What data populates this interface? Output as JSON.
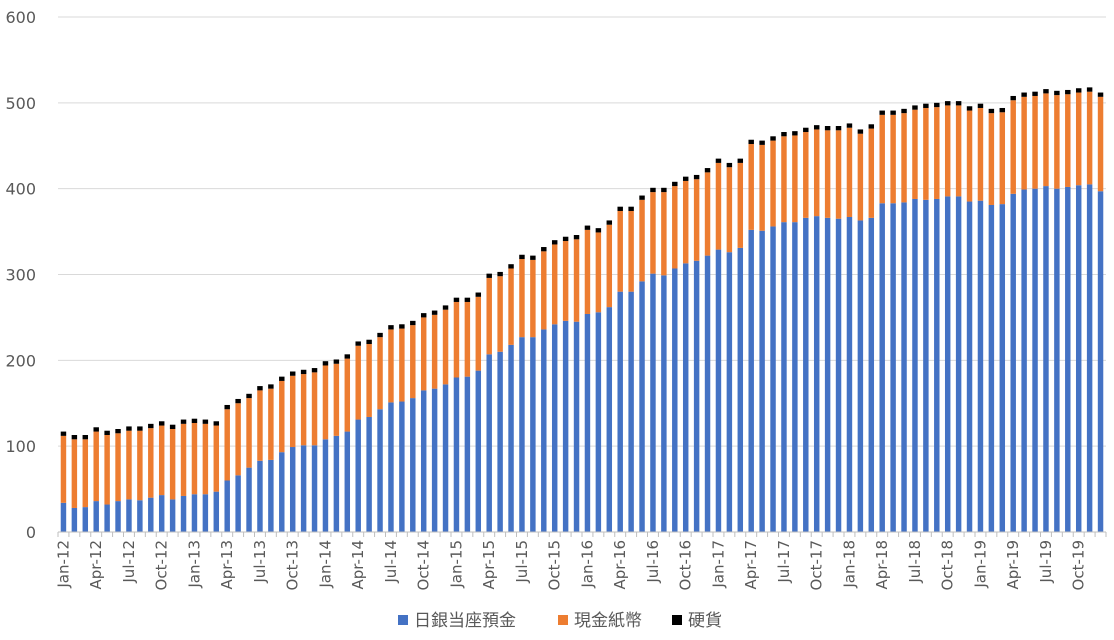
{
  "chart_data": {
    "type": "bar",
    "stacked": true,
    "ylim": [
      0,
      600
    ],
    "yticks": [
      0,
      100,
      200,
      300,
      400,
      500,
      600
    ],
    "grid": true,
    "legend_position": "bottom",
    "tick_labels": [
      "Jan-12",
      "Apr-12",
      "Jul-12",
      "Oct-12",
      "Jan-13",
      "Apr-13",
      "Jul-13",
      "Oct-13",
      "Jan-14",
      "Apr-14",
      "Jul-14",
      "Oct-14",
      "Jan-15",
      "Apr-15",
      "Jul-15",
      "Oct-15",
      "Jan-16",
      "Apr-16",
      "Jul-16",
      "Oct-16",
      "Jan-17",
      "Apr-17",
      "Jul-17",
      "Oct-17",
      "Jan-18",
      "Apr-18",
      "Jul-18",
      "Oct-18",
      "Jan-19",
      "Apr-19",
      "Jul-19",
      "Oct-19"
    ],
    "categories": [
      "Jan-12",
      "Feb-12",
      "Mar-12",
      "Apr-12",
      "May-12",
      "Jun-12",
      "Jul-12",
      "Aug-12",
      "Sep-12",
      "Oct-12",
      "Nov-12",
      "Dec-12",
      "Jan-13",
      "Feb-13",
      "Mar-13",
      "Apr-13",
      "May-13",
      "Jun-13",
      "Jul-13",
      "Aug-13",
      "Sep-13",
      "Oct-13",
      "Nov-13",
      "Dec-13",
      "Jan-14",
      "Feb-14",
      "Mar-14",
      "Apr-14",
      "May-14",
      "Jun-14",
      "Jul-14",
      "Aug-14",
      "Sep-14",
      "Oct-14",
      "Nov-14",
      "Dec-14",
      "Jan-15",
      "Feb-15",
      "Mar-15",
      "Apr-15",
      "May-15",
      "Jun-15",
      "Jul-15",
      "Aug-15",
      "Sep-15",
      "Oct-15",
      "Nov-15",
      "Dec-15",
      "Jan-16",
      "Feb-16",
      "Mar-16",
      "Apr-16",
      "May-16",
      "Jun-16",
      "Jul-16",
      "Aug-16",
      "Sep-16",
      "Oct-16",
      "Nov-16",
      "Dec-16",
      "Jan-17",
      "Feb-17",
      "Mar-17",
      "Apr-17",
      "May-17",
      "Jun-17",
      "Jul-17",
      "Aug-17",
      "Sep-17",
      "Oct-17",
      "Nov-17",
      "Dec-17",
      "Jan-18",
      "Feb-18",
      "Mar-18",
      "Apr-18",
      "May-18",
      "Jun-18",
      "Jul-18",
      "Aug-18",
      "Sep-18",
      "Oct-18",
      "Nov-18",
      "Dec-18",
      "Jan-19",
      "Feb-19",
      "Mar-19",
      "Apr-19",
      "May-19",
      "Jun-19",
      "Jul-19",
      "Aug-19",
      "Sep-19",
      "Oct-19",
      "Nov-19",
      "Dec-19"
    ],
    "series": [
      {
        "name": "日銀当座預金",
        "color": "#4472c4",
        "values": [
          34,
          28,
          29,
          36,
          32,
          36,
          38,
          37,
          40,
          43,
          38,
          42,
          44,
          44,
          47,
          60,
          66,
          75,
          83,
          84,
          93,
          99,
          101,
          101,
          108,
          112,
          117,
          131,
          134,
          143,
          151,
          152,
          156,
          165,
          167,
          172,
          180,
          181,
          188,
          207,
          210,
          218,
          227,
          227,
          236,
          242,
          246,
          245,
          254,
          256,
          262,
          280,
          280,
          292,
          301,
          299,
          307,
          313,
          316,
          322,
          329,
          326,
          331,
          352,
          351,
          356,
          361,
          361,
          366,
          368,
          366,
          365,
          367,
          363,
          366,
          383,
          383,
          384,
          388,
          387,
          388,
          391,
          391,
          385,
          386,
          381,
          382,
          394,
          399,
          400,
          403,
          400,
          402,
          404,
          405,
          397
        ]
      },
      {
        "name": "現金紙幣",
        "color": "#ed7d31",
        "values": [
          78,
          80,
          79,
          81,
          81,
          79,
          80,
          81,
          81,
          81,
          82,
          84,
          83,
          82,
          77,
          83,
          84,
          81,
          82,
          83,
          83,
          83,
          83,
          85,
          86,
          84,
          85,
          86,
          85,
          84,
          85,
          85,
          85,
          85,
          86,
          87,
          88,
          87,
          86,
          89,
          88,
          89,
          91,
          90,
          91,
          93,
          93,
          96,
          98,
          93,
          96,
          94,
          94,
          95,
          95,
          97,
          96,
          96,
          95,
          97,
          101,
          99,
          99,
          100,
          100,
          100,
          100,
          101,
          100,
          101,
          102,
          103,
          104,
          101,
          104,
          103,
          103,
          104,
          104,
          107,
          107,
          106,
          106,
          106,
          108,
          107,
          107,
          109,
          108,
          108,
          108,
          109,
          108,
          108,
          108,
          110
        ]
      },
      {
        "name": "硬貨",
        "color": "#000000",
        "values": [
          5,
          5,
          5,
          5,
          5,
          5,
          5,
          5,
          5,
          5,
          5,
          5,
          5,
          5,
          5,
          5,
          5,
          5,
          5,
          5,
          5,
          5,
          5,
          5,
          5,
          5,
          5,
          5,
          5,
          5,
          5,
          5,
          5,
          5,
          5,
          5,
          5,
          5,
          5,
          5,
          5,
          5,
          5,
          5,
          5,
          5,
          5,
          5,
          5,
          5,
          5,
          5,
          5,
          5,
          5,
          5,
          5,
          5,
          5,
          5,
          5,
          5,
          5,
          5,
          5,
          5,
          5,
          5,
          5,
          5,
          5,
          5,
          5,
          5,
          5,
          5,
          5,
          5,
          5,
          5,
          5,
          5,
          5,
          5,
          5,
          5,
          5,
          5,
          5,
          5,
          5,
          5,
          5,
          5,
          5,
          5
        ]
      }
    ]
  }
}
